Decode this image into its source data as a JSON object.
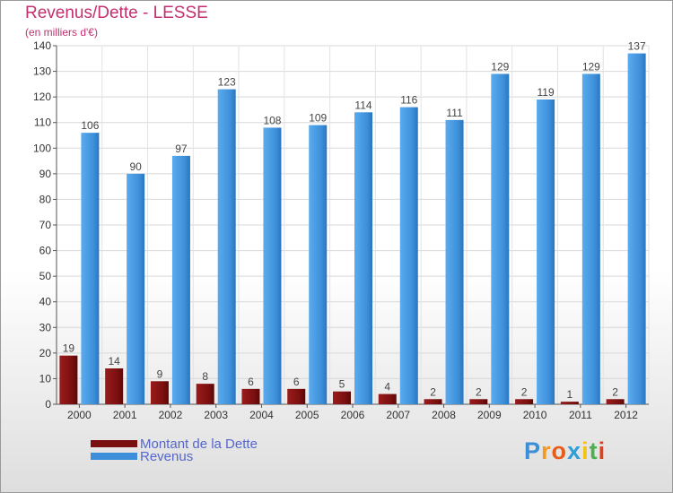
{
  "chart_data": {
    "type": "bar",
    "title": "Revenus/Dette - LESSE",
    "subtitle": "(en milliers d'€)",
    "categories": [
      "2000",
      "2001",
      "2002",
      "2003",
      "2004",
      "2005",
      "2006",
      "2007",
      "2008",
      "2009",
      "2010",
      "2011",
      "2012"
    ],
    "series": [
      {
        "name": "Montant de la Dette",
        "color": "#7a0f0f",
        "values": [
          19,
          14,
          9,
          8,
          6,
          6,
          5,
          4,
          2,
          2,
          2,
          1,
          2
        ]
      },
      {
        "name": "Revenus",
        "color": "#3d8fd9",
        "values": [
          106,
          90,
          97,
          123,
          108,
          109,
          114,
          116,
          111,
          129,
          119,
          129,
          137
        ]
      }
    ],
    "ylim": [
      0,
      140
    ],
    "yticks": [
      0,
      10,
      20,
      30,
      40,
      50,
      60,
      70,
      80,
      90,
      100,
      110,
      120,
      130,
      140
    ],
    "grid": true,
    "legend": "bottom-left"
  },
  "logo": {
    "text": "Proxiti",
    "colors": [
      "#3a8fd8",
      "#f29a22",
      "#e85c1a",
      "#2d9fd8",
      "#f2c218",
      "#4caf50",
      "#e2401b"
    ]
  }
}
